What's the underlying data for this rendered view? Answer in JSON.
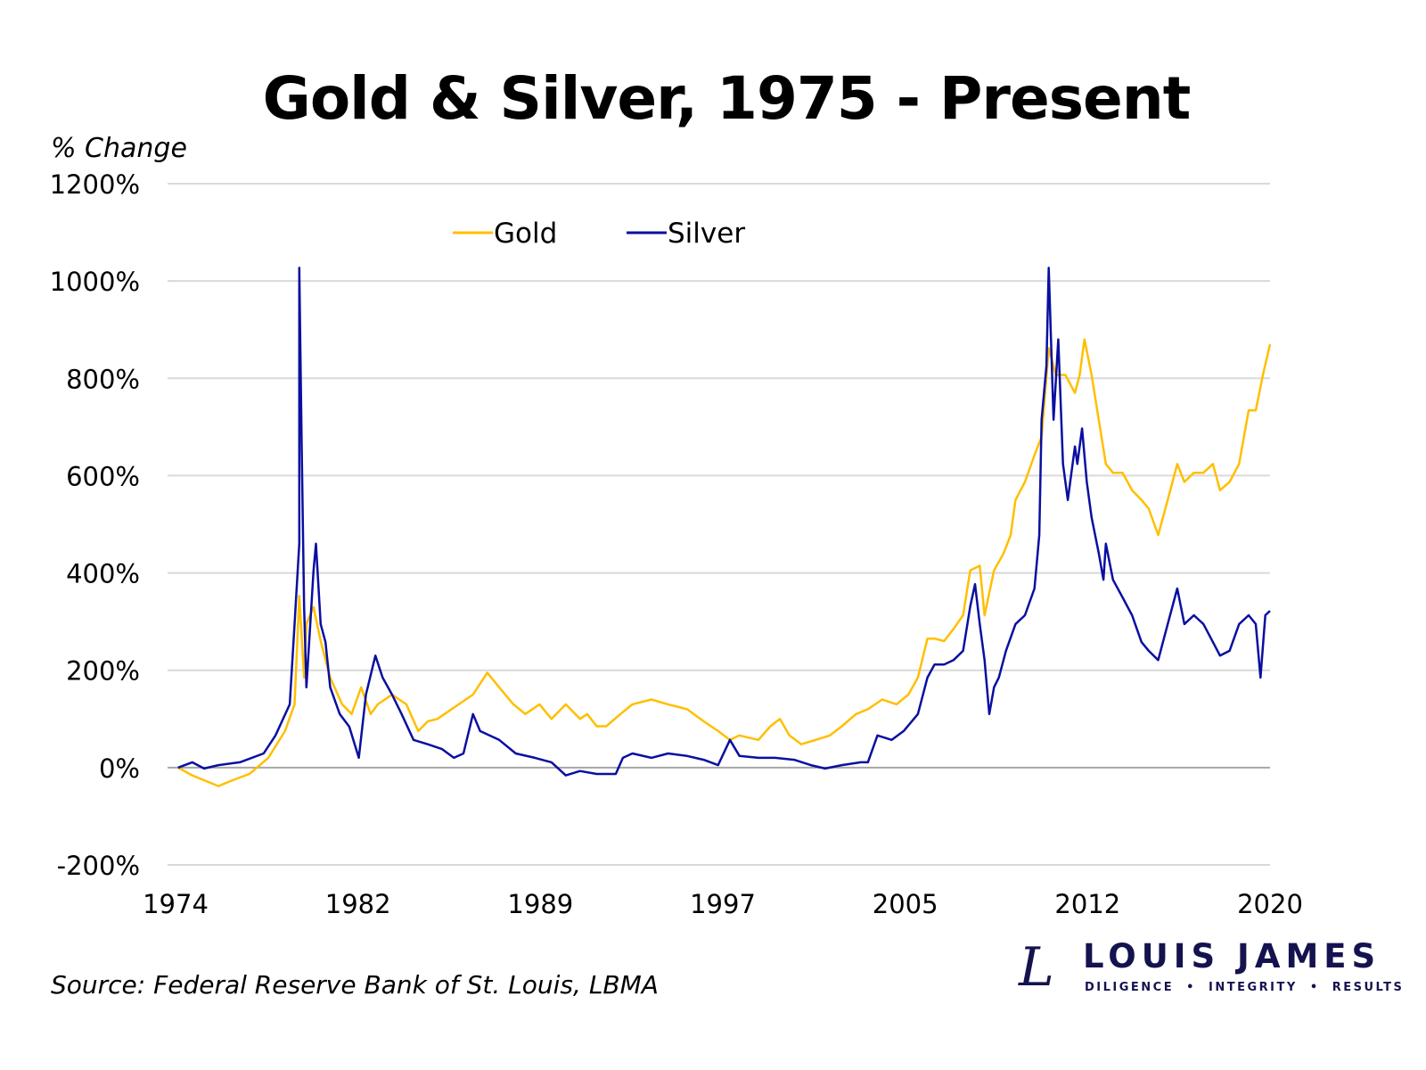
{
  "chart_data": {
    "type": "line",
    "title": "Gold & Silver, 1975 - Present",
    "ylabel": "% Change",
    "xlabel": "",
    "xlim": [
      1974,
      2020
    ],
    "ylim": [
      -200,
      1200
    ],
    "x_ticks": [
      "1974",
      "1982",
      "1989",
      "1997",
      "2005",
      "2012",
      "2020"
    ],
    "y_ticks": [
      {
        "value": -200,
        "label": "-200%"
      },
      {
        "value": 0,
        "label": "0%"
      },
      {
        "value": 200,
        "label": "200%"
      },
      {
        "value": 400,
        "label": "400%"
      },
      {
        "value": 600,
        "label": "600%"
      },
      {
        "value": 800,
        "label": "800%"
      },
      {
        "value": 1000,
        "label": "1000%"
      },
      {
        "value": 1200,
        "label": "1200%"
      }
    ],
    "grid": "horizontal",
    "legend": "top-center",
    "series": [
      {
        "name": "Gold",
        "color": "#FFBF00",
        "points": [
          [
            1974.1,
            0
          ],
          [
            1974.7,
            -16
          ],
          [
            1975.8,
            -38
          ],
          [
            1976.4,
            -26
          ],
          [
            1977.1,
            -13
          ],
          [
            1977.9,
            20
          ],
          [
            1978.6,
            75
          ],
          [
            1979.0,
            130
          ],
          [
            1979.2,
            353
          ],
          [
            1979.4,
            185
          ],
          [
            1979.5,
            295
          ],
          [
            1979.8,
            330
          ],
          [
            1980.1,
            260
          ],
          [
            1980.5,
            185
          ],
          [
            1981.0,
            130
          ],
          [
            1981.4,
            110
          ],
          [
            1981.8,
            165
          ],
          [
            1982.2,
            110
          ],
          [
            1982.5,
            130
          ],
          [
            1983.1,
            150
          ],
          [
            1983.7,
            130
          ],
          [
            1984.2,
            75
          ],
          [
            1984.6,
            95
          ],
          [
            1985.0,
            100
          ],
          [
            1985.3,
            110
          ],
          [
            1985.9,
            130
          ],
          [
            1986.5,
            150
          ],
          [
            1987.1,
            195
          ],
          [
            1987.6,
            165
          ],
          [
            1988.2,
            130
          ],
          [
            1988.7,
            110
          ],
          [
            1989.3,
            130
          ],
          [
            1989.8,
            100
          ],
          [
            1990.4,
            130
          ],
          [
            1991.0,
            100
          ],
          [
            1991.3,
            110
          ],
          [
            1991.7,
            85
          ],
          [
            1992.1,
            85
          ],
          [
            1992.7,
            110
          ],
          [
            1993.2,
            130
          ],
          [
            1994.0,
            140
          ],
          [
            1994.7,
            130
          ],
          [
            1995.5,
            120
          ],
          [
            1996.2,
            95
          ],
          [
            1996.8,
            75
          ],
          [
            1997.3,
            57
          ],
          [
            1997.7,
            66
          ],
          [
            1998.5,
            57
          ],
          [
            1999.0,
            85
          ],
          [
            1999.4,
            100
          ],
          [
            1999.8,
            66
          ],
          [
            2000.3,
            48
          ],
          [
            2000.9,
            57
          ],
          [
            2001.5,
            66
          ],
          [
            2002.0,
            85
          ],
          [
            2002.6,
            110
          ],
          [
            2003.1,
            120
          ],
          [
            2003.7,
            140
          ],
          [
            2004.3,
            130
          ],
          [
            2004.8,
            150
          ],
          [
            2005.2,
            185
          ],
          [
            2005.6,
            265
          ],
          [
            2005.9,
            265
          ],
          [
            2006.3,
            260
          ],
          [
            2006.7,
            285
          ],
          [
            2007.1,
            313
          ],
          [
            2007.4,
            405
          ],
          [
            2007.8,
            415
          ],
          [
            2008.0,
            313
          ],
          [
            2008.4,
            405
          ],
          [
            2008.8,
            440
          ],
          [
            2009.1,
            478
          ],
          [
            2009.3,
            550
          ],
          [
            2009.7,
            587
          ],
          [
            2010.1,
            642
          ],
          [
            2010.4,
            680
          ],
          [
            2010.7,
            862
          ],
          [
            2011.0,
            807
          ],
          [
            2011.4,
            807
          ],
          [
            2011.8,
            770
          ],
          [
            2012.0,
            807
          ],
          [
            2012.2,
            880
          ],
          [
            2012.5,
            807
          ],
          [
            2012.8,
            715
          ],
          [
            2013.1,
            624
          ],
          [
            2013.4,
            606
          ],
          [
            2013.8,
            606
          ],
          [
            2014.2,
            570
          ],
          [
            2014.6,
            550
          ],
          [
            2014.9,
            532
          ],
          [
            2015.3,
            478
          ],
          [
            2015.7,
            550
          ],
          [
            2016.1,
            624
          ],
          [
            2016.4,
            587
          ],
          [
            2016.8,
            606
          ],
          [
            2017.2,
            606
          ],
          [
            2017.6,
            624
          ],
          [
            2017.9,
            570
          ],
          [
            2018.3,
            587
          ],
          [
            2018.7,
            624
          ],
          [
            2019.1,
            734
          ],
          [
            2019.4,
            734
          ],
          [
            2019.7,
            807
          ],
          [
            2020.0,
            870
          ]
        ]
      },
      {
        "name": "Silver",
        "color": "#0A0FA0",
        "points": [
          [
            1974.1,
            0
          ],
          [
            1974.7,
            11
          ],
          [
            1975.2,
            -2
          ],
          [
            1975.8,
            5
          ],
          [
            1976.7,
            11
          ],
          [
            1977.7,
            29
          ],
          [
            1978.2,
            66
          ],
          [
            1978.8,
            130
          ],
          [
            1979.0,
            295
          ],
          [
            1979.2,
            460
          ],
          [
            1979.2,
            1027
          ],
          [
            1979.3,
            660
          ],
          [
            1979.4,
            331
          ],
          [
            1979.5,
            165
          ],
          [
            1979.8,
            405
          ],
          [
            1979.9,
            460
          ],
          [
            1980.1,
            295
          ],
          [
            1980.3,
            258
          ],
          [
            1980.5,
            165
          ],
          [
            1980.9,
            110
          ],
          [
            1981.3,
            84
          ],
          [
            1981.7,
            20
          ],
          [
            1982.0,
            150
          ],
          [
            1982.4,
            230
          ],
          [
            1982.7,
            185
          ],
          [
            1983.1,
            150
          ],
          [
            1983.5,
            110
          ],
          [
            1984.0,
            57
          ],
          [
            1984.6,
            48
          ],
          [
            1985.2,
            38
          ],
          [
            1985.7,
            20
          ],
          [
            1986.1,
            29
          ],
          [
            1986.5,
            110
          ],
          [
            1986.8,
            75
          ],
          [
            1987.6,
            57
          ],
          [
            1988.3,
            29
          ],
          [
            1989.1,
            20
          ],
          [
            1989.8,
            11
          ],
          [
            1990.4,
            -16
          ],
          [
            1991.0,
            -7
          ],
          [
            1991.7,
            -13
          ],
          [
            1992.5,
            -13
          ],
          [
            1992.8,
            20
          ],
          [
            1993.2,
            29
          ],
          [
            1994.0,
            20
          ],
          [
            1994.7,
            29
          ],
          [
            1995.5,
            24
          ],
          [
            1996.2,
            16
          ],
          [
            1996.8,
            5
          ],
          [
            1997.3,
            57
          ],
          [
            1997.7,
            24
          ],
          [
            1998.5,
            20
          ],
          [
            1999.2,
            20
          ],
          [
            2000.0,
            16
          ],
          [
            2000.7,
            5
          ],
          [
            2001.3,
            -2
          ],
          [
            2002.0,
            5
          ],
          [
            2002.8,
            11
          ],
          [
            2003.1,
            11
          ],
          [
            2003.5,
            66
          ],
          [
            2004.1,
            57
          ],
          [
            2004.6,
            75
          ],
          [
            2005.2,
            110
          ],
          [
            2005.6,
            185
          ],
          [
            2005.9,
            212
          ],
          [
            2006.3,
            212
          ],
          [
            2006.7,
            221
          ],
          [
            2007.1,
            240
          ],
          [
            2007.4,
            331
          ],
          [
            2007.6,
            377
          ],
          [
            2007.8,
            295
          ],
          [
            2008.0,
            221
          ],
          [
            2008.2,
            110
          ],
          [
            2008.4,
            165
          ],
          [
            2008.6,
            185
          ],
          [
            2008.9,
            240
          ],
          [
            2009.3,
            295
          ],
          [
            2009.7,
            313
          ],
          [
            2010.1,
            368
          ],
          [
            2010.3,
            478
          ],
          [
            2010.4,
            715
          ],
          [
            2010.6,
            825
          ],
          [
            2010.7,
            1027
          ],
          [
            2010.9,
            715
          ],
          [
            2011.1,
            880
          ],
          [
            2011.3,
            624
          ],
          [
            2011.5,
            550
          ],
          [
            2011.8,
            660
          ],
          [
            2011.9,
            624
          ],
          [
            2012.1,
            697
          ],
          [
            2012.3,
            587
          ],
          [
            2012.5,
            514
          ],
          [
            2012.8,
            441
          ],
          [
            2013.0,
            386
          ],
          [
            2013.1,
            460
          ],
          [
            2013.4,
            386
          ],
          [
            2013.8,
            350
          ],
          [
            2014.2,
            313
          ],
          [
            2014.6,
            258
          ],
          [
            2014.9,
            240
          ],
          [
            2015.3,
            221
          ],
          [
            2015.7,
            295
          ],
          [
            2016.1,
            368
          ],
          [
            2016.4,
            295
          ],
          [
            2016.8,
            313
          ],
          [
            2017.2,
            295
          ],
          [
            2017.6,
            258
          ],
          [
            2017.9,
            230
          ],
          [
            2018.3,
            240
          ],
          [
            2018.7,
            295
          ],
          [
            2019.1,
            313
          ],
          [
            2019.4,
            295
          ],
          [
            2019.6,
            185
          ],
          [
            2019.8,
            313
          ],
          [
            2020.0,
            322
          ]
        ]
      }
    ]
  },
  "source": "Source: Federal Reserve Bank of St. Louis, LBMA",
  "logo": {
    "mark": "L",
    "name": "LOUIS JAMES",
    "tagline": "DILIGENCE  •  INTEGRITY  •  RESULTS"
  }
}
